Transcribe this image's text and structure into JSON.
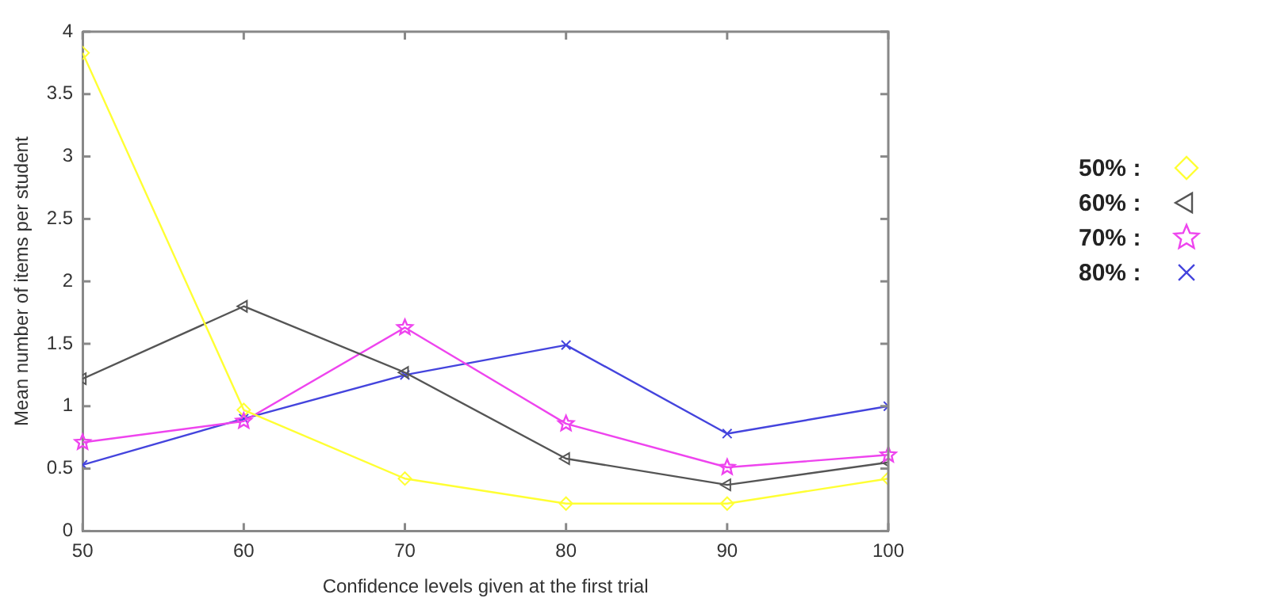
{
  "chart_data": {
    "type": "line",
    "xlabel": "Confidence levels given at the first trial",
    "ylabel": "Mean number of items per student",
    "x": [
      50,
      60,
      70,
      80,
      90,
      100
    ],
    "series": [
      {
        "name": "50% :",
        "color": "#ffff33",
        "marker": "diamond",
        "values": [
          3.83,
          0.97,
          0.42,
          0.22,
          0.22,
          0.42
        ]
      },
      {
        "name": "60% :",
        "color": "#555555",
        "marker": "triangle",
        "values": [
          1.22,
          1.8,
          1.27,
          0.58,
          0.37,
          0.55
        ]
      },
      {
        "name": "70% :",
        "color": "#ee44ee",
        "marker": "star",
        "values": [
          0.71,
          0.88,
          1.63,
          0.86,
          0.51,
          0.61
        ]
      },
      {
        "name": "80% :",
        "color": "#4444dd",
        "marker": "cross",
        "values": [
          0.53,
          0.9,
          1.25,
          1.49,
          0.78,
          1.0
        ]
      }
    ],
    "xlim": [
      50,
      100
    ],
    "xticks": [
      50,
      60,
      70,
      80,
      90,
      100
    ],
    "ylim": [
      0,
      4
    ],
    "yticks": [
      0,
      0.5,
      1,
      1.5,
      2,
      2.5,
      3,
      3.5,
      4
    ],
    "grid": false,
    "legend": "right"
  }
}
